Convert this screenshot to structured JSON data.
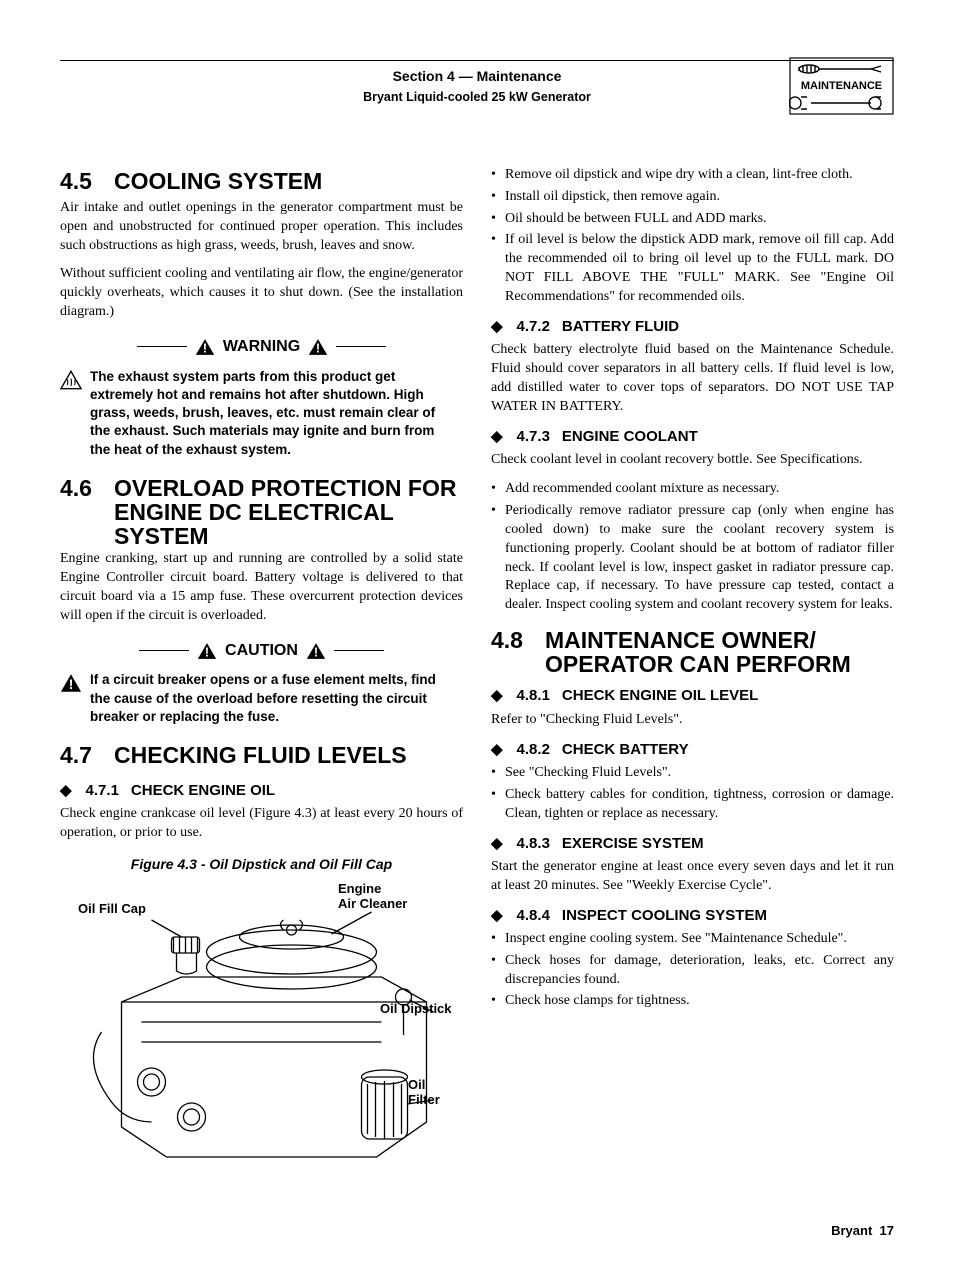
{
  "header": {
    "section": "Section 4 — Maintenance",
    "sub": "Bryant Liquid-cooled 25 kW Generator",
    "iconLabel": "MAINTENANCE"
  },
  "left": {
    "s45": {
      "num": "4.5",
      "title": "COOLING SYSTEM",
      "p1": "Air intake and outlet openings in the generator compartment must be open and unobstructed for continued proper operation. This includes such obstructions as high grass, weeds, brush, leaves and snow.",
      "p2": "Without sufficient cooling and ventilating air flow, the engine/generator quickly overheats, which causes it to shut down. (See the installation diagram.)",
      "warnLabel": "WARNING",
      "warnBody": "The exhaust system parts from this product get extremely hot and remains hot after shutdown. High grass, weeds, brush, leaves, etc. must remain clear of the exhaust. Such materials may ignite and burn from the heat of the exhaust system."
    },
    "s46": {
      "num": "4.6",
      "title": "OVERLOAD PROTECTION FOR ENGINE DC ELECTRICAL SYSTEM",
      "p1": "Engine cranking, start up and running are controlled by a solid state Engine Controller circuit board. Battery voltage is delivered to that circuit board via a 15 amp fuse. These overcurrent protection devices will open if the circuit is overloaded.",
      "cautionLabel": "CAUTION",
      "cautionBody": "If a circuit breaker opens or a fuse element melts, find the cause of the overload before resetting the circuit breaker or replacing the fuse."
    },
    "s47": {
      "num": "4.7",
      "title": "CHECKING FLUID LEVELS",
      "s471": {
        "num": "4.7.1",
        "title": "CHECK ENGINE OIL",
        "p1": "Check engine crankcase oil level (Figure 4.3) at least every 20 hours of operation, or prior to use.",
        "figLabel": "Figure 4.3 - Oil Dipstick and Oil Fill Cap",
        "anno": {
          "oilFillCap": "Oil Fill Cap",
          "airCleaner": "Engine\nAir Cleaner",
          "oilDipstick": "Oil Dipstick",
          "oilFilter": "Oil\nFilter"
        }
      }
    }
  },
  "right": {
    "topList": [
      "Remove oil dipstick and wipe dry with a clean, lint-free cloth.",
      "Install oil dipstick, then remove again.",
      "Oil should be between FULL and ADD marks.",
      "If oil level is below the dipstick ADD mark, remove oil fill cap. Add the recommended oil to bring oil level up to the FULL mark. DO NOT FILL ABOVE THE \"FULL\" MARK. See \"Engine Oil Recommendations\" for recommended oils."
    ],
    "s472": {
      "num": "4.7.2",
      "title": "BATTERY FLUID",
      "p1": "Check battery electrolyte fluid based on the Maintenance Schedule. Fluid should cover separators in all battery cells. If fluid level is low, add distilled water to cover tops of separators. DO NOT USE TAP WATER IN BATTERY."
    },
    "s473": {
      "num": "4.7.3",
      "title": "ENGINE COOLANT",
      "p1": "Check coolant level in coolant recovery bottle. See Specifications.",
      "list": [
        "Add recommended coolant mixture as necessary.",
        "Periodically remove radiator pressure cap (only when engine has cooled down) to make sure the coolant recovery system is functioning properly. Coolant should be at bottom of radiator filler neck. If coolant level is low, inspect gasket in radiator pressure cap. Replace cap, if necessary. To have pressure cap tested, contact a dealer. Inspect cooling system and coolant recovery system for leaks."
      ]
    },
    "s48": {
      "num": "4.8",
      "title": "MAINTENANCE OWNER/ OPERATOR CAN PERFORM",
      "s481": {
        "num": "4.8.1",
        "title": "CHECK ENGINE OIL LEVEL",
        "p1": "Refer to \"Checking Fluid Levels\"."
      },
      "s482": {
        "num": "4.8.2",
        "title": "CHECK BATTERY",
        "list": [
          "See \"Checking Fluid Levels\".",
          "Check battery cables for condition, tightness, corrosion or damage. Clean, tighten or replace as necessary."
        ]
      },
      "s483": {
        "num": "4.8.3",
        "title": "EXERCISE SYSTEM",
        "p1": "Start the generator engine at least once every seven days and let it run at least 20 minutes. See \"Weekly Exercise Cycle\"."
      },
      "s484": {
        "num": "4.8.4",
        "title": "INSPECT COOLING SYSTEM",
        "list": [
          "Inspect engine cooling system. See \"Maintenance Schedule\".",
          "Check hoses for damage, deterioration, leaks, etc. Correct any discrepancies found.",
          "Check hose clamps for tightness."
        ]
      }
    }
  },
  "footer": {
    "brand": "Bryant",
    "page": "17"
  }
}
